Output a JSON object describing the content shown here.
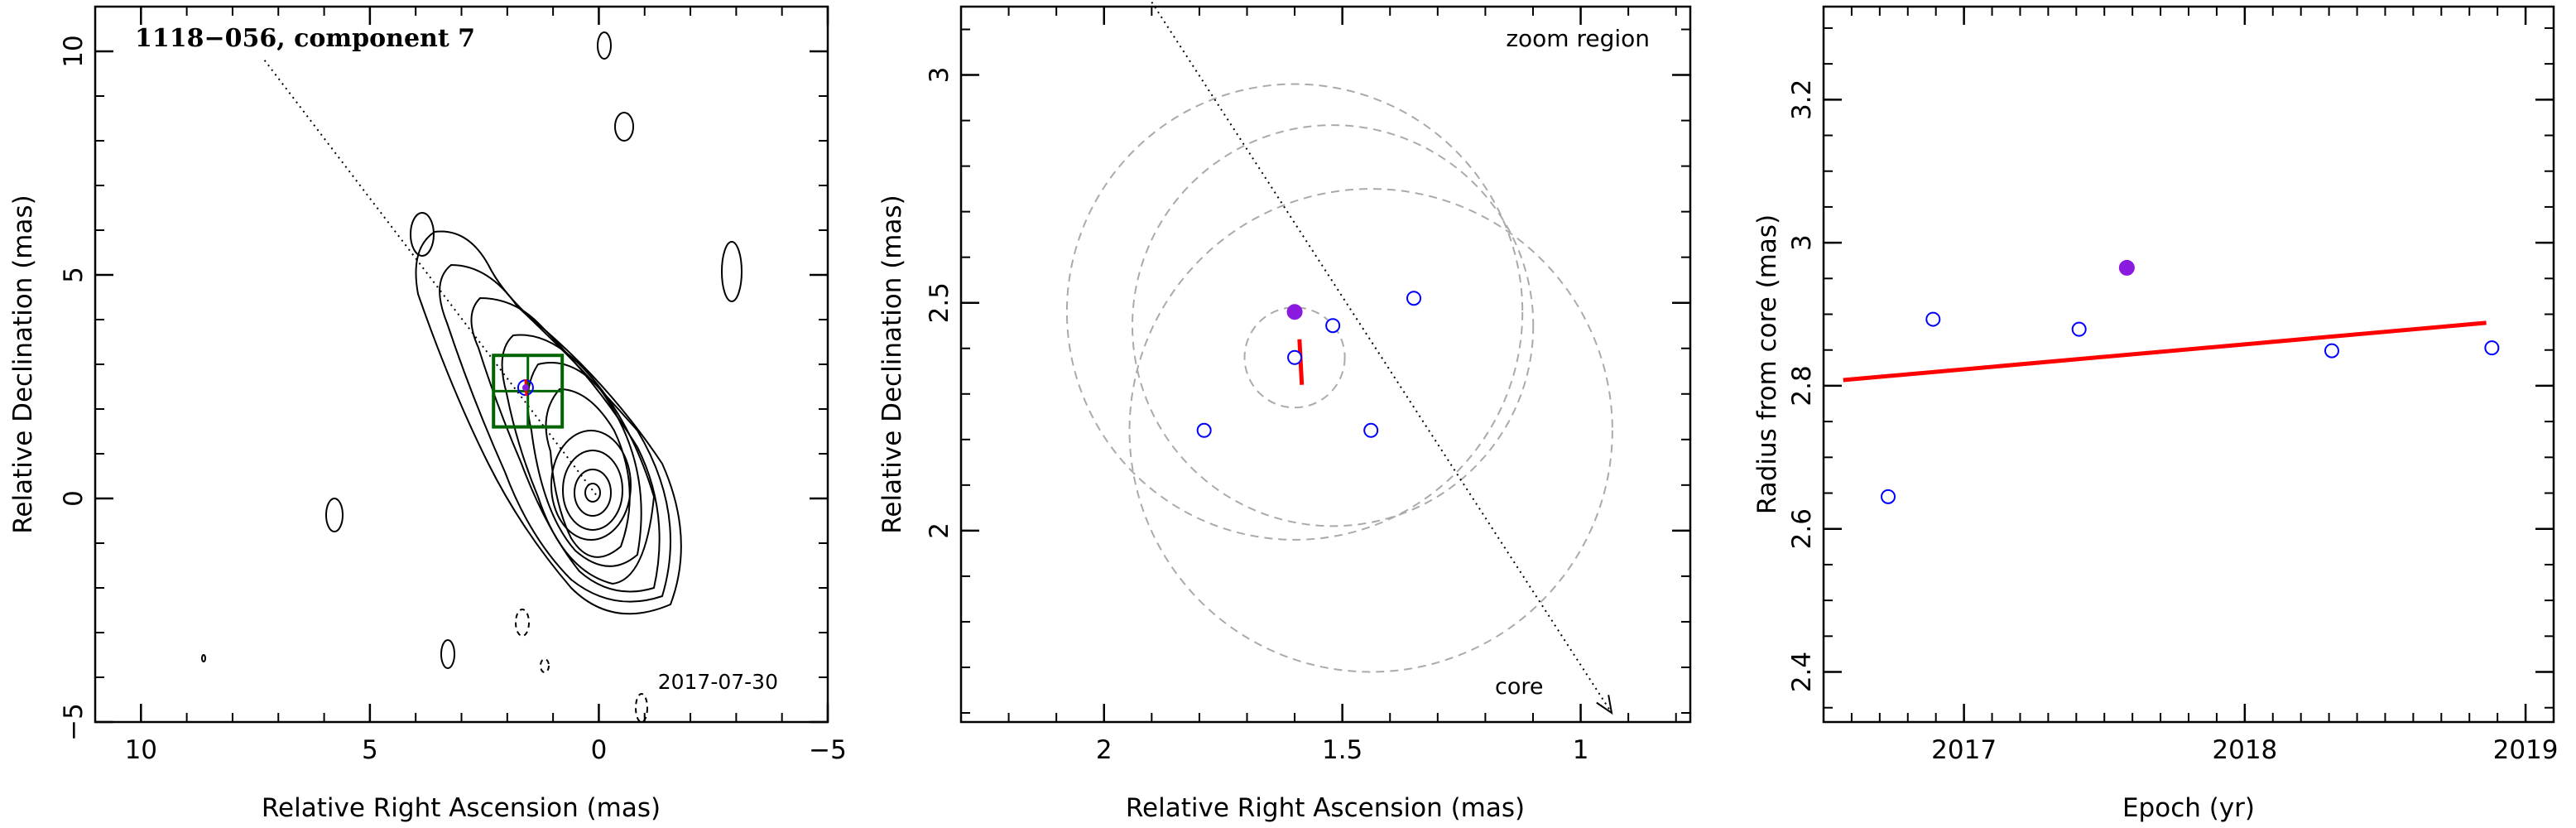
{
  "figure": {
    "panels": [
      {
        "id": "map",
        "title": "1118−056, component 7",
        "date": "2017-07-30",
        "xlabel": "Relative Right Ascension (mas)",
        "ylabel": "Relative Declination (mas)"
      },
      {
        "id": "zoom",
        "annotation": "zoom region",
        "core_label": "core",
        "xlabel": "Relative Right Ascension (mas)",
        "ylabel": "Relative Declination (mas)"
      },
      {
        "id": "radius",
        "xlabel": "Epoch (yr)",
        "ylabel": "Radius from core (mas)"
      }
    ]
  },
  "colors": {
    "axes": "#000000",
    "epochs_open": "#0000ff",
    "highlight_epoch": "#8a1adf",
    "fit": "#ff0000",
    "zoom_box": "#006400",
    "circles": "#aaaaaa"
  },
  "chart_data": [
    {
      "type": "contour",
      "title": "1118−056, component 7",
      "xlabel": "Relative Right Ascension (mas)",
      "ylabel": "Relative Declination (mas)",
      "xlim": [
        11,
        -5
      ],
      "ylim": [
        -5,
        11
      ],
      "x_ticks": [
        10,
        5,
        0,
        -5
      ],
      "y_ticks": [
        -5,
        0,
        5,
        10
      ],
      "date": "2017-07-30",
      "core": [
        0,
        0
      ],
      "zoom_box": {
        "ra": [
          0.8,
          2.3
        ],
        "dec": [
          1.6,
          3.2
        ]
      },
      "direction_line": [
        [
          7.3,
          9.8
        ],
        [
          0,
          0
        ]
      ],
      "component_marker": [
        1.6,
        2.48
      ]
    },
    {
      "type": "scatter",
      "title": "zoom region",
      "xlabel": "Relative Right Ascension (mas)",
      "ylabel": "Relative Declination (mas)",
      "xlim": [
        2.3,
        0.77
      ],
      "ylim": [
        1.58,
        3.15
      ],
      "x_ticks": [
        2,
        1.5,
        1
      ],
      "y_ticks": [
        2,
        2.5,
        3
      ],
      "series": [
        {
          "points": [
            [
              1.79,
              2.22
            ],
            [
              1.6,
              2.38
            ],
            [
              1.52,
              2.45
            ],
            [
              1.44,
              2.22
            ],
            [
              1.35,
              2.51
            ]
          ]
        },
        {
          "points": [
            [
              1.6,
              2.48
            ]
          ]
        }
      ],
      "circles": [
        {
          "center": [
            1.6,
            2.38
          ],
          "radius": 0.11
        },
        {
          "center": [
            1.52,
            2.45
          ],
          "radius": 0.44
        },
        {
          "center": [
            1.6,
            2.48
          ],
          "radius": 0.5
        },
        {
          "center": [
            1.44,
            2.22
          ],
          "radius": 0.53
        }
      ],
      "fit_segment": [
        [
          1.59,
          2.42
        ],
        [
          1.585,
          2.32
        ]
      ],
      "direction_line": [
        [
          1.9,
          3.16
        ],
        [
          0.935,
          1.6
        ]
      ],
      "core_label": "core"
    },
    {
      "type": "scatter",
      "xlabel": "Epoch (yr)",
      "ylabel": "Radius from core (mas)",
      "xlim": [
        2016.5,
        2019.1
      ],
      "ylim": [
        2.33,
        3.33
      ],
      "x_ticks": [
        2017,
        2018,
        2019
      ],
      "y_ticks": [
        2.4,
        2.6,
        2.8,
        3,
        3.2
      ],
      "series": [
        {
          "x": [
            2016.73,
            2016.89,
            2017.41,
            2018.31,
            2018.88
          ],
          "y": [
            2.645,
            2.893,
            2.879,
            2.849,
            2.853
          ]
        },
        {
          "x": [
            2017.58
          ],
          "y": [
            2.965
          ]
        }
      ],
      "fit": {
        "x": [
          2016.57,
          2018.86
        ],
        "y": [
          2.808,
          2.888
        ]
      }
    }
  ]
}
